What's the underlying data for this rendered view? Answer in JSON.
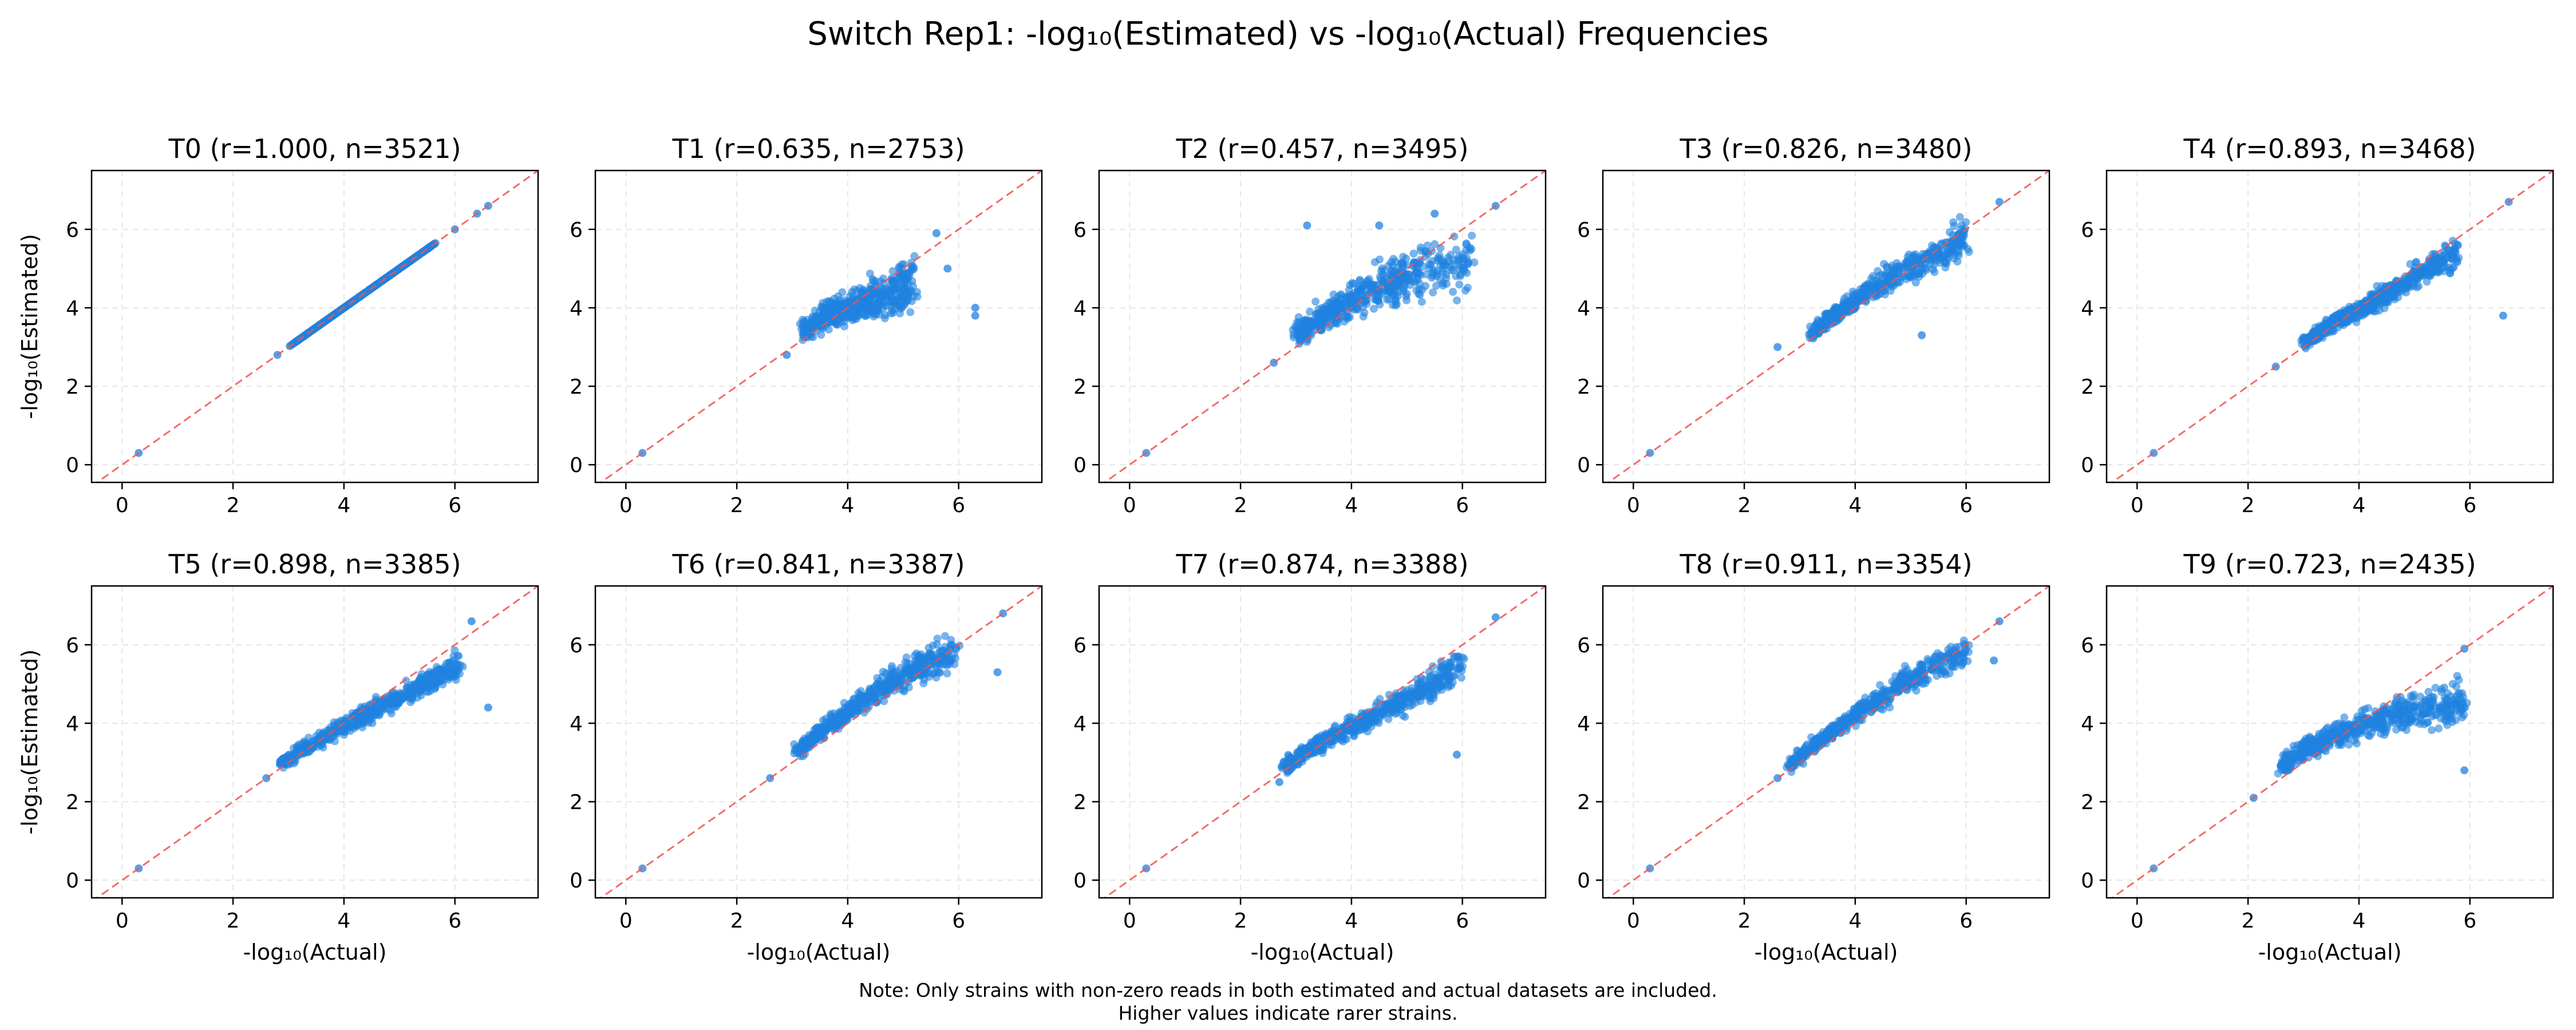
{
  "figure": {
    "title": "Switch Rep1: -log₁₀(Estimated) vs -log₁₀(Actual) Frequencies",
    "note_line1": "Note: Only strains with non-zero reads in both estimated and actual datasets are included.",
    "note_line2": "Higher values indicate rarer strains.",
    "point_color": "#1f82e0",
    "diagonal_color": "#ef5350",
    "grid": true
  },
  "chart_data": [
    {
      "type": "scatter",
      "title": "T0 (r=1.000, n=3521)",
      "r": 1.0,
      "n": 3521,
      "xlabel": "",
      "ylabel": "-log₁₀(Estimated)",
      "xlim": [
        -0.55,
        7.5
      ],
      "ylim": [
        -0.45,
        7.5
      ],
      "xticks": [
        0,
        2,
        4,
        6
      ],
      "yticks": [
        0,
        2,
        4,
        6
      ],
      "reference_line": "y = x",
      "points": {
        "bulk_low": [
          3.1,
          3.4,
          3.6,
          3.8,
          4.0,
          4.2,
          4.4,
          4.6,
          4.8,
          5.0,
          5.2,
          5.4,
          5.6
        ],
        "bulk_mid_y": [
          3.1,
          3.4,
          3.6,
          3.8,
          4.0,
          4.2,
          4.4,
          4.6,
          4.8,
          5.0,
          5.2,
          5.4,
          5.6
        ],
        "outliers": [
          [
            0.3,
            0.3
          ],
          [
            2.8,
            2.8
          ],
          [
            6.0,
            6.0
          ],
          [
            6.4,
            6.4
          ],
          [
            6.6,
            6.6
          ]
        ]
      }
    },
    {
      "type": "scatter",
      "title": "T1 (r=0.635, n=2753)",
      "r": 0.635,
      "n": 2753,
      "xlabel": "",
      "ylabel": "",
      "xlim": [
        -0.55,
        7.5
      ],
      "ylim": [
        -0.45,
        7.5
      ],
      "xticks": [
        0,
        2,
        4,
        6
      ],
      "yticks": [
        0,
        2,
        4,
        6
      ],
      "reference_line": "y = x",
      "points": {
        "bulk_low": [
          3.2,
          3.6,
          4.0,
          4.4,
          4.8,
          5.2
        ],
        "bulk_mid_y": [
          3.4,
          3.8,
          4.0,
          4.2,
          4.4,
          4.7
        ],
        "outliers": [
          [
            0.3,
            0.3
          ],
          [
            2.9,
            2.8
          ],
          [
            5.6,
            5.9
          ],
          [
            5.8,
            5.0
          ],
          [
            6.3,
            4.0
          ],
          [
            6.3,
            3.8
          ]
        ]
      }
    },
    {
      "type": "scatter",
      "title": "T2 (r=0.457, n=3495)",
      "r": 0.457,
      "n": 3495,
      "xlabel": "",
      "ylabel": "",
      "xlim": [
        -0.55,
        7.5
      ],
      "ylim": [
        -0.45,
        7.5
      ],
      "xticks": [
        0,
        2,
        4,
        6
      ],
      "yticks": [
        0,
        2,
        4,
        6
      ],
      "reference_line": "y = x",
      "points": {
        "bulk_low": [
          3.0,
          3.4,
          3.8,
          4.2,
          4.6,
          5.0,
          5.6,
          6.2
        ],
        "bulk_mid_y": [
          3.3,
          3.7,
          4.0,
          4.3,
          4.6,
          4.8,
          5.0,
          5.1
        ],
        "outliers": [
          [
            0.3,
            0.3
          ],
          [
            2.6,
            2.6
          ],
          [
            3.2,
            6.1
          ],
          [
            4.5,
            6.1
          ],
          [
            5.5,
            6.4
          ],
          [
            6.6,
            6.6
          ]
        ]
      }
    },
    {
      "type": "scatter",
      "title": "T3 (r=0.826, n=3480)",
      "r": 0.826,
      "n": 3480,
      "xlabel": "",
      "ylabel": "",
      "xlim": [
        -0.55,
        7.5
      ],
      "ylim": [
        -0.45,
        7.5
      ],
      "xticks": [
        0,
        2,
        4,
        6
      ],
      "yticks": [
        0,
        2,
        4,
        6
      ],
      "reference_line": "y = x",
      "points": {
        "bulk_low": [
          3.2,
          3.6,
          4.0,
          4.4,
          4.8,
          5.2,
          5.6,
          6.0
        ],
        "bulk_mid_y": [
          3.3,
          3.8,
          4.2,
          4.6,
          4.9,
          5.2,
          5.5,
          5.8
        ],
        "outliers": [
          [
            0.3,
            0.3
          ],
          [
            2.6,
            3.0
          ],
          [
            6.6,
            6.7
          ],
          [
            5.2,
            3.3
          ]
        ]
      }
    },
    {
      "type": "scatter",
      "title": "T4 (r=0.893, n=3468)",
      "r": 0.893,
      "n": 3468,
      "xlabel": "",
      "ylabel": "",
      "xlim": [
        -0.55,
        7.5
      ],
      "ylim": [
        -0.45,
        7.5
      ],
      "xticks": [
        0,
        2,
        4,
        6
      ],
      "yticks": [
        0,
        2,
        4,
        6
      ],
      "reference_line": "y = x",
      "points": {
        "bulk_low": [
          3.0,
          3.4,
          3.8,
          4.2,
          4.6,
          5.0,
          5.4,
          5.8
        ],
        "bulk_mid_y": [
          3.1,
          3.5,
          3.8,
          4.1,
          4.4,
          4.8,
          5.1,
          5.5
        ],
        "outliers": [
          [
            0.3,
            0.3
          ],
          [
            2.5,
            2.5
          ],
          [
            6.6,
            3.8
          ],
          [
            6.7,
            6.7
          ]
        ]
      }
    },
    {
      "type": "scatter",
      "title": "T5 (r=0.898, n=3385)",
      "r": 0.898,
      "n": 3385,
      "xlabel": "-log₁₀(Actual)",
      "ylabel": "-log₁₀(Estimated)",
      "xlim": [
        -0.55,
        7.5
      ],
      "ylim": [
        -0.45,
        7.5
      ],
      "xticks": [
        0,
        2,
        4,
        6
      ],
      "yticks": [
        0,
        2,
        4,
        6
      ],
      "reference_line": "y = x",
      "points": {
        "bulk_low": [
          2.9,
          3.3,
          3.7,
          4.1,
          4.5,
          4.9,
          5.3,
          5.7,
          6.1
        ],
        "bulk_mid_y": [
          3.0,
          3.4,
          3.7,
          4.0,
          4.3,
          4.6,
          4.9,
          5.2,
          5.5
        ],
        "outliers": [
          [
            0.3,
            0.3
          ],
          [
            2.6,
            2.6
          ],
          [
            6.3,
            6.6
          ],
          [
            6.6,
            4.4
          ]
        ]
      }
    },
    {
      "type": "scatter",
      "title": "T6 (r=0.841, n=3387)",
      "r": 0.841,
      "n": 3387,
      "xlabel": "-log₁₀(Actual)",
      "ylabel": "",
      "xlim": [
        -0.55,
        7.5
      ],
      "ylim": [
        -0.45,
        7.5
      ],
      "xticks": [
        0,
        2,
        4,
        6
      ],
      "yticks": [
        0,
        2,
        4,
        6
      ],
      "reference_line": "y = x",
      "points": {
        "bulk_low": [
          3.1,
          3.5,
          3.9,
          4.3,
          4.7,
          5.1,
          5.5,
          6.0
        ],
        "bulk_mid_y": [
          3.3,
          3.8,
          4.2,
          4.6,
          5.0,
          5.3,
          5.6,
          5.9
        ],
        "outliers": [
          [
            0.3,
            0.3
          ],
          [
            2.6,
            2.6
          ],
          [
            6.8,
            6.8
          ],
          [
            6.7,
            5.3
          ]
        ]
      }
    },
    {
      "type": "scatter",
      "title": "T7 (r=0.874, n=3388)",
      "r": 0.874,
      "n": 3388,
      "xlabel": "-log₁₀(Actual)",
      "ylabel": "",
      "xlim": [
        -0.55,
        7.5
      ],
      "ylim": [
        -0.45,
        7.5
      ],
      "xticks": [
        0,
        2,
        4,
        6
      ],
      "yticks": [
        0,
        2,
        4,
        6
      ],
      "reference_line": "y = x",
      "points": {
        "bulk_low": [
          2.8,
          3.2,
          3.6,
          4.0,
          4.4,
          4.8,
          5.2,
          5.6,
          6.0
        ],
        "bulk_mid_y": [
          2.9,
          3.3,
          3.6,
          3.9,
          4.2,
          4.5,
          4.8,
          5.1,
          5.5
        ],
        "outliers": [
          [
            0.3,
            0.3
          ],
          [
            2.7,
            2.5
          ],
          [
            6.6,
            6.7
          ],
          [
            5.9,
            3.2
          ]
        ]
      }
    },
    {
      "type": "scatter",
      "title": "T8 (r=0.911, n=3354)",
      "r": 0.911,
      "n": 3354,
      "xlabel": "-log₁₀(Actual)",
      "ylabel": "",
      "xlim": [
        -0.55,
        7.5
      ],
      "ylim": [
        -0.45,
        7.5
      ],
      "xticks": [
        0,
        2,
        4,
        6
      ],
      "yticks": [
        0,
        2,
        4,
        6
      ],
      "reference_line": "y = x",
      "points": {
        "bulk_low": [
          2.8,
          3.2,
          3.6,
          4.0,
          4.4,
          4.8,
          5.2,
          5.6,
          6.0
        ],
        "bulk_mid_y": [
          2.9,
          3.4,
          3.8,
          4.2,
          4.6,
          5.0,
          5.3,
          5.6,
          5.9
        ],
        "outliers": [
          [
            0.3,
            0.3
          ],
          [
            2.6,
            2.6
          ],
          [
            6.6,
            6.6
          ],
          [
            6.5,
            5.6
          ]
        ]
      }
    },
    {
      "type": "scatter",
      "title": "T9 (r=0.723, n=2435)",
      "r": 0.723,
      "n": 2435,
      "xlabel": "-log₁₀(Actual)",
      "ylabel": "",
      "xlim": [
        -0.55,
        7.5
      ],
      "ylim": [
        -0.45,
        7.5
      ],
      "xticks": [
        0,
        2,
        4,
        6
      ],
      "yticks": [
        0,
        2,
        4,
        6
      ],
      "reference_line": "y = x",
      "points": {
        "bulk_low": [
          2.6,
          3.0,
          3.4,
          3.8,
          4.2,
          4.6,
          5.0,
          5.4,
          5.9
        ],
        "bulk_mid_y": [
          2.9,
          3.3,
          3.6,
          3.8,
          4.0,
          4.2,
          4.3,
          4.4,
          4.5
        ],
        "outliers": [
          [
            0.3,
            0.3
          ],
          [
            2.1,
            2.1
          ],
          [
            5.9,
            5.9
          ],
          [
            5.9,
            2.8
          ]
        ]
      }
    }
  ]
}
